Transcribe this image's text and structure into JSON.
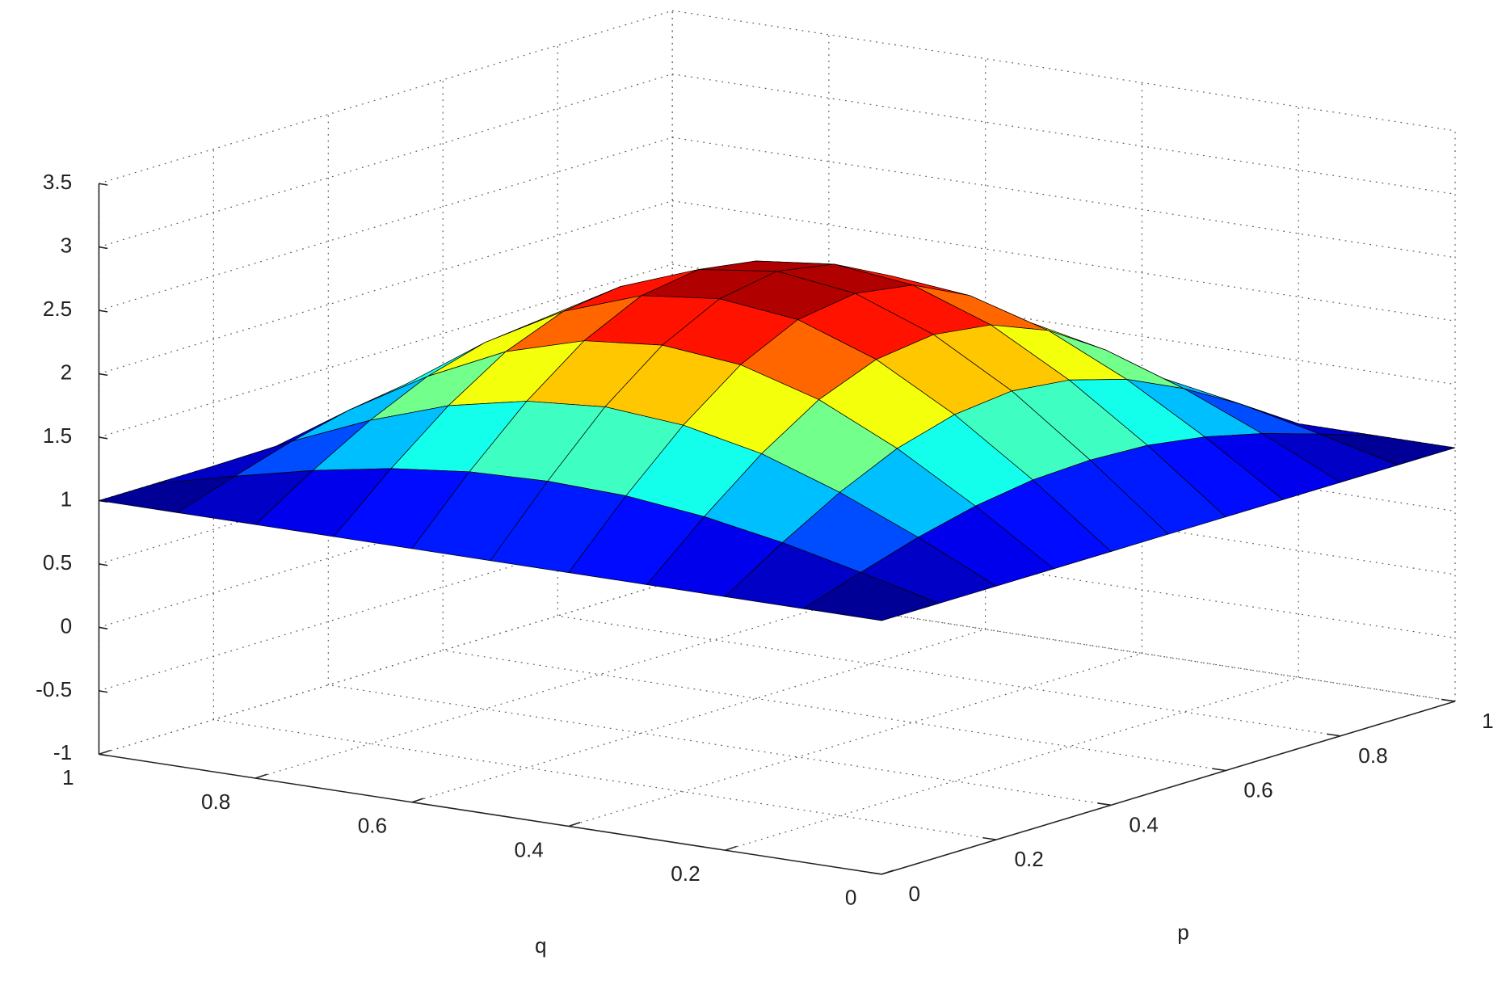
{
  "chart_data": {
    "type": "surface",
    "x_label": "p",
    "y_label": "q",
    "x": [
      0,
      0.1,
      0.2,
      0.3,
      0.4,
      0.5,
      0.6,
      0.7,
      0.8,
      0.9,
      1
    ],
    "y": [
      0,
      0.1,
      0.2,
      0.3,
      0.4,
      0.5,
      0.6,
      0.7,
      0.8,
      0.9,
      1
    ],
    "z": [
      [
        1,
        1,
        1,
        1,
        1,
        1,
        1,
        1,
        1,
        1,
        1
      ],
      [
        1,
        1.15,
        1.29,
        1.4,
        1.47,
        1.49,
        1.47,
        1.4,
        1.29,
        1.15,
        1
      ],
      [
        1,
        1.29,
        1.55,
        1.76,
        1.89,
        1.94,
        1.89,
        1.76,
        1.55,
        1.29,
        1
      ],
      [
        1,
        1.4,
        1.76,
        2.05,
        2.23,
        2.29,
        2.23,
        2.05,
        1.76,
        1.4,
        1
      ],
      [
        1,
        1.47,
        1.89,
        2.23,
        2.45,
        2.52,
        2.45,
        2.23,
        1.89,
        1.47,
        1
      ],
      [
        1,
        1.49,
        1.94,
        2.29,
        2.52,
        2.6,
        2.52,
        2.29,
        1.94,
        1.49,
        1
      ],
      [
        1,
        1.47,
        1.89,
        2.23,
        2.45,
        2.52,
        2.45,
        2.23,
        1.89,
        1.47,
        1
      ],
      [
        1,
        1.4,
        1.76,
        2.05,
        2.23,
        2.29,
        2.23,
        2.05,
        1.76,
        1.4,
        1
      ],
      [
        1,
        1.29,
        1.55,
        1.76,
        1.89,
        1.94,
        1.89,
        1.76,
        1.55,
        1.29,
        1
      ],
      [
        1,
        1.15,
        1.29,
        1.4,
        1.47,
        1.49,
        1.47,
        1.4,
        1.29,
        1.15,
        1
      ],
      [
        1,
        1,
        1,
        1,
        1,
        1,
        1,
        1,
        1,
        1,
        1
      ]
    ],
    "xlim": [
      0,
      1
    ],
    "ylim": [
      0,
      1
    ],
    "zlim": [
      -1,
      3.5
    ],
    "xticks": [
      0,
      0.2,
      0.4,
      0.6,
      0.8,
      1
    ],
    "yticks": [
      0,
      0.2,
      0.4,
      0.6,
      0.8,
      1
    ],
    "zticks": [
      -1,
      -0.5,
      0,
      0.5,
      1,
      1.5,
      2,
      2.5,
      3,
      3.5
    ],
    "grid": true,
    "colormap": "jet",
    "edge_color": "#000000"
  }
}
